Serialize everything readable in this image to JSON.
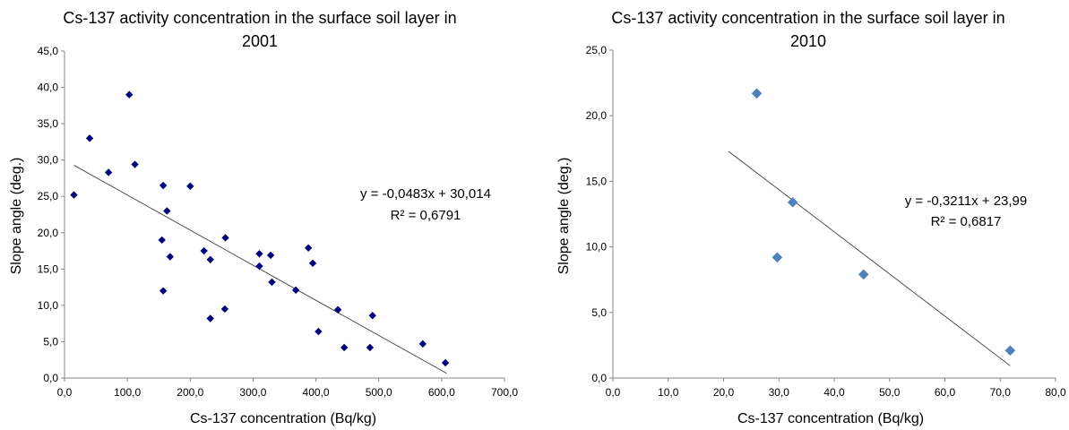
{
  "chart_data": [
    {
      "type": "scatter",
      "title_line1": "Cs-137 activity concentration in the surface soil layer in",
      "title_line2": "2001",
      "xlabel": "Cs-137 concentration (Bq/kg)",
      "ylabel": "Slope angle (deg.)",
      "xlim": [
        0,
        700
      ],
      "ylim": [
        0,
        45
      ],
      "xticks": [
        "0,0",
        "100,0",
        "200,0",
        "300,0",
        "400,0",
        "500,0",
        "600,0",
        "700,0"
      ],
      "yticks": [
        "0,0",
        "5,0",
        "10,0",
        "15,0",
        "20,0",
        "25,0",
        "30,0",
        "35,0",
        "40,0",
        "45,0"
      ],
      "marker_color": "#00007f",
      "points": [
        {
          "x": 15,
          "y": 25.2
        },
        {
          "x": 40,
          "y": 33.0
        },
        {
          "x": 70,
          "y": 28.3
        },
        {
          "x": 103,
          "y": 39.0
        },
        {
          "x": 112,
          "y": 29.4
        },
        {
          "x": 157,
          "y": 26.5
        },
        {
          "x": 163,
          "y": 23.0
        },
        {
          "x": 155,
          "y": 19.0
        },
        {
          "x": 168,
          "y": 16.7
        },
        {
          "x": 157,
          "y": 12.0
        },
        {
          "x": 200,
          "y": 26.4
        },
        {
          "x": 222,
          "y": 17.5
        },
        {
          "x": 232,
          "y": 16.3
        },
        {
          "x": 256,
          "y": 19.3
        },
        {
          "x": 232,
          "y": 8.2
        },
        {
          "x": 255,
          "y": 9.5
        },
        {
          "x": 310,
          "y": 17.1
        },
        {
          "x": 310,
          "y": 15.4
        },
        {
          "x": 328,
          "y": 16.9
        },
        {
          "x": 330,
          "y": 13.2
        },
        {
          "x": 368,
          "y": 12.1
        },
        {
          "x": 388,
          "y": 17.9
        },
        {
          "x": 395,
          "y": 15.8
        },
        {
          "x": 404,
          "y": 6.4
        },
        {
          "x": 435,
          "y": 9.4
        },
        {
          "x": 445,
          "y": 4.2
        },
        {
          "x": 486,
          "y": 4.2
        },
        {
          "x": 490,
          "y": 8.6
        },
        {
          "x": 570,
          "y": 4.7
        },
        {
          "x": 606,
          "y": 2.1
        }
      ],
      "trendline": {
        "x_start": 15,
        "x_end": 608,
        "slope": -0.0483,
        "intercept": 30.014
      },
      "equation": "y = -0,0483x + 30,014",
      "r_squared": "R² = 0,6791"
    },
    {
      "type": "scatter",
      "title_line1": "Cs-137 activity concentration in the surface soil layer in",
      "title_line2": "2010",
      "xlabel": "Cs-137 concentration (Bq/kg)",
      "ylabel": "Slope angle (deg.)",
      "xlim": [
        0,
        80
      ],
      "ylim": [
        0,
        25
      ],
      "xticks": [
        "0,0",
        "10,0",
        "20,0",
        "30,0",
        "40,0",
        "50,0",
        "60,0",
        "70,0",
        "80,0"
      ],
      "yticks": [
        "0,0",
        "5,0",
        "10,0",
        "15,0",
        "20,0",
        "25,0"
      ],
      "marker_color": "#4f81bd",
      "points": [
        {
          "x": 26.0,
          "y": 21.7
        },
        {
          "x": 32.5,
          "y": 13.4
        },
        {
          "x": 29.7,
          "y": 9.2
        },
        {
          "x": 45.3,
          "y": 7.9
        },
        {
          "x": 71.8,
          "y": 2.1
        }
      ],
      "trendline": {
        "x_start": 20.9,
        "x_end": 71.8,
        "slope": -0.3211,
        "intercept": 23.99
      },
      "equation": "y = -0,3211x + 23,99",
      "r_squared": "R² = 0,6817"
    }
  ]
}
